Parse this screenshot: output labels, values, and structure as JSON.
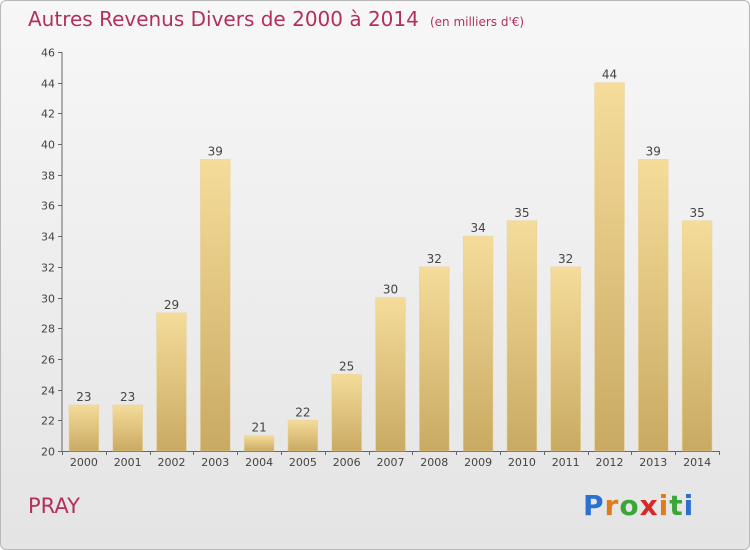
{
  "title": "Autres Revenus Divers de 2000 à 2014",
  "subtitle": "(en milliers d'€)",
  "commune": "PRAY",
  "logo": {
    "letters": [
      "P",
      "r",
      "o",
      "x",
      "i",
      "t",
      "i"
    ],
    "colors": [
      "#2a6fd1",
      "#e07b1a",
      "#3aa63a",
      "#d42a2a",
      "#e07b1a",
      "#3aa63a",
      "#2a6fd1"
    ]
  },
  "chart_data": {
    "type": "bar",
    "categories": [
      "2000",
      "2001",
      "2002",
      "2003",
      "2004",
      "2005",
      "2006",
      "2007",
      "2008",
      "2009",
      "2010",
      "2011",
      "2012",
      "2013",
      "2014"
    ],
    "values": [
      23,
      23,
      29,
      39,
      21,
      22,
      25,
      30,
      32,
      34,
      35,
      32,
      44,
      39,
      35
    ],
    "ylim": [
      20,
      46
    ],
    "yticks": [
      20,
      22,
      24,
      26,
      28,
      30,
      32,
      34,
      36,
      38,
      40,
      42,
      44,
      46
    ],
    "grid": false,
    "bar_color_top": "#f5dc9a",
    "bar_color_bottom": "#c9aa62"
  }
}
